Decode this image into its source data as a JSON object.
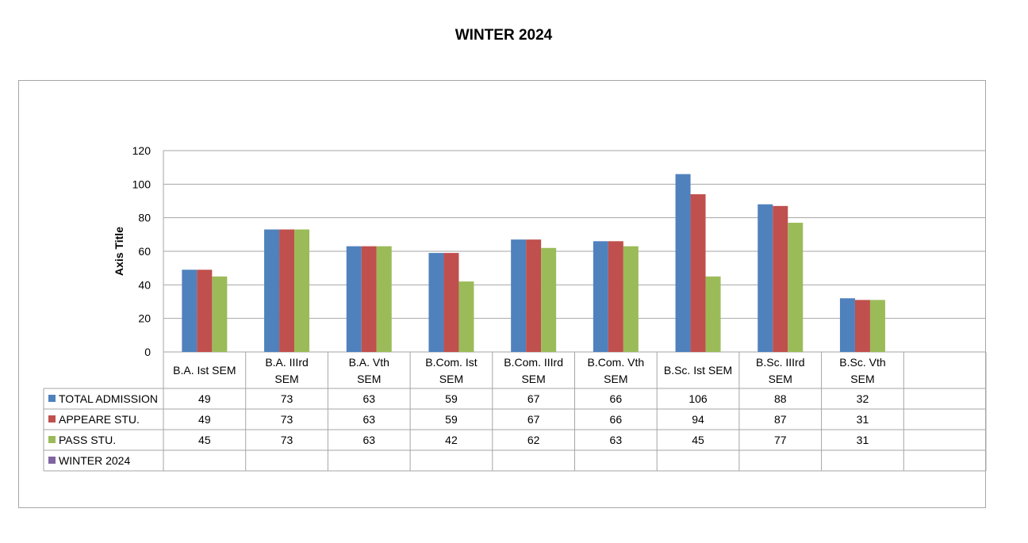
{
  "page": {
    "title": "WINTER 2024"
  },
  "chart_data": {
    "type": "bar",
    "title": "WINTER 2024",
    "xlabel": "",
    "ylabel": "Axis Title",
    "ylim": [
      0,
      120
    ],
    "yticks": [
      0,
      20,
      40,
      60,
      80,
      100,
      120
    ],
    "grid": true,
    "legend": "data-table-below",
    "categories": [
      [
        "B.A. Ist SEM"
      ],
      [
        "B.A. IIIrd",
        "SEM"
      ],
      [
        "B.A. Vth",
        "SEM"
      ],
      [
        "B.Com. Ist",
        "SEM"
      ],
      [
        "B.Com. IIIrd",
        "SEM"
      ],
      [
        "B.Com. Vth",
        "SEM"
      ],
      [
        "B.Sc. Ist SEM"
      ],
      [
        "B.Sc. IIIrd",
        "SEM"
      ],
      [
        "B.Sc. Vth",
        "SEM"
      ],
      [
        ""
      ]
    ],
    "series": [
      {
        "name": "TOTAL ADMISSION",
        "color": "#4f81bd",
        "values": [
          49,
          73,
          63,
          59,
          67,
          66,
          106,
          88,
          32,
          null
        ]
      },
      {
        "name": "APPEARE STU.",
        "color": "#c0504d",
        "values": [
          49,
          73,
          63,
          59,
          67,
          66,
          94,
          87,
          31,
          null
        ]
      },
      {
        "name": "PASS STU.",
        "color": "#9bbb59",
        "values": [
          45,
          73,
          63,
          42,
          62,
          63,
          45,
          77,
          31,
          null
        ]
      },
      {
        "name": "WINTER 2024",
        "color": "#8064a2",
        "values": [
          null,
          null,
          null,
          null,
          null,
          null,
          null,
          null,
          null,
          null
        ]
      }
    ]
  }
}
